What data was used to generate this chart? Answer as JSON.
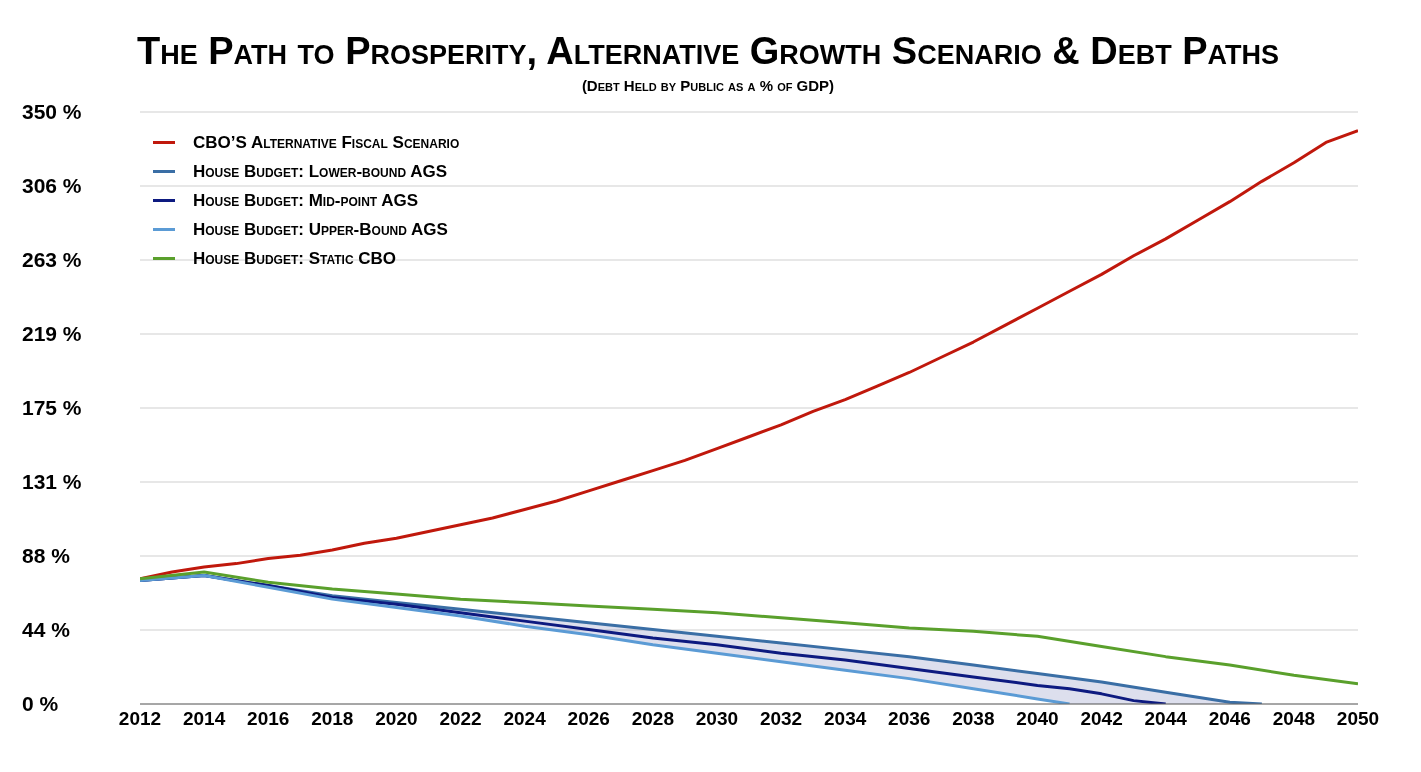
{
  "chart_data": {
    "type": "line",
    "title": "The Path to Prosperity, Alternative Growth Scenario & Debt Paths",
    "subtitle": "(Debt Held by Public as a % of GDP)",
    "xlim": [
      2012,
      2050
    ],
    "xticks": [
      2012,
      2014,
      2016,
      2018,
      2020,
      2022,
      2024,
      2026,
      2028,
      2030,
      2032,
      2034,
      2036,
      2038,
      2040,
      2042,
      2044,
      2046,
      2048,
      2050
    ],
    "ylim": [
      0,
      350
    ],
    "yticks": [
      {
        "value": 0,
        "label": "0 %"
      },
      {
        "value": 43.75,
        "label": "44 %"
      },
      {
        "value": 87.5,
        "label": "88 %"
      },
      {
        "value": 131.25,
        "label": "131 %"
      },
      {
        "value": 175,
        "label": "175 %"
      },
      {
        "value": 218.75,
        "label": "219 %"
      },
      {
        "value": 262.5,
        "label": "263 %"
      },
      {
        "value": 306.25,
        "label": "306 %"
      },
      {
        "value": 350,
        "label": "350 %"
      }
    ],
    "grid": "y",
    "legend": "top left",
    "marker": "none",
    "line_style": "solid",
    "series": [
      {
        "name": "CBO’S Alternative Fiscal Scenario",
        "color": "#c0180c",
        "x": [
          2012,
          2013,
          2014,
          2015,
          2016,
          2017,
          2018,
          2019,
          2020,
          2021,
          2022,
          2023,
          2024,
          2025,
          2026,
          2027,
          2028,
          2029,
          2030,
          2031,
          2032,
          2033,
          2034,
          2035,
          2036,
          2037,
          2038,
          2039,
          2040,
          2041,
          2042,
          2043,
          2044,
          2045,
          2046,
          2047,
          2048,
          2049,
          2050
        ],
        "values": [
          74,
          78,
          81,
          83,
          86,
          88,
          91,
          95,
          98,
          102,
          106,
          110,
          115,
          120,
          126,
          132,
          138,
          144,
          151,
          158,
          165,
          173,
          180,
          188,
          196,
          205,
          214,
          224,
          234,
          244,
          254,
          265,
          275,
          286,
          297,
          309,
          320,
          332,
          339
        ]
      },
      {
        "name": "House Budget: Lower-bound AGS",
        "color": "#3a6ea5",
        "x": [
          2012,
          2014,
          2016,
          2018,
          2020,
          2022,
          2024,
          2026,
          2028,
          2030,
          2032,
          2034,
          2036,
          2038,
          2040,
          2042,
          2044,
          2046,
          2047
        ],
        "values": [
          73,
          76,
          70,
          64,
          60,
          56,
          52,
          48,
          44,
          40,
          36,
          32,
          28,
          23,
          18,
          13,
          7,
          1,
          0
        ]
      },
      {
        "name": "House Budget: Mid-point AGS",
        "color": "#0d1a80",
        "x": [
          2012,
          2014,
          2016,
          2018,
          2020,
          2022,
          2024,
          2026,
          2028,
          2030,
          2032,
          2034,
          2036,
          2038,
          2040,
          2041,
          2042,
          2043,
          2044,
          2046,
          2047
        ],
        "values": [
          73,
          76,
          70,
          63,
          59,
          54,
          49,
          44,
          39,
          35,
          30,
          26,
          21,
          16,
          11,
          9,
          6,
          2,
          0,
          null,
          null
        ],
        "lower": [
          73,
          76,
          69,
          62,
          57,
          52,
          46,
          41,
          35,
          30,
          25,
          20,
          15,
          9,
          3,
          0,
          0,
          0,
          0,
          0,
          0
        ],
        "upper": [
          73,
          76,
          70,
          64,
          60,
          56,
          52,
          48,
          44,
          40,
          36,
          32,
          28,
          23,
          18,
          16,
          13,
          10,
          7,
          1,
          0
        ]
      },
      {
        "name": "House Budget: Upper-Bound AGS",
        "color": "#5b9bd5",
        "x": [
          2012,
          2014,
          2016,
          2018,
          2020,
          2022,
          2024,
          2026,
          2028,
          2030,
          2032,
          2034,
          2036,
          2038,
          2040,
          2041
        ],
        "values": [
          73,
          76,
          69,
          62,
          57,
          52,
          46,
          41,
          35,
          30,
          25,
          20,
          15,
          9,
          3,
          0
        ]
      },
      {
        "name": "House Budget: Static CBO",
        "color": "#5aa02c",
        "x": [
          2012,
          2014,
          2016,
          2018,
          2020,
          2022,
          2024,
          2026,
          2028,
          2030,
          2032,
          2034,
          2036,
          2038,
          2040,
          2042,
          2044,
          2046,
          2048,
          2050
        ],
        "values": [
          74,
          78,
          72,
          68,
          65,
          62,
          60,
          58,
          56,
          54,
          51,
          48,
          45,
          43,
          40,
          34,
          28,
          23,
          17,
          12
        ]
      }
    ]
  }
}
